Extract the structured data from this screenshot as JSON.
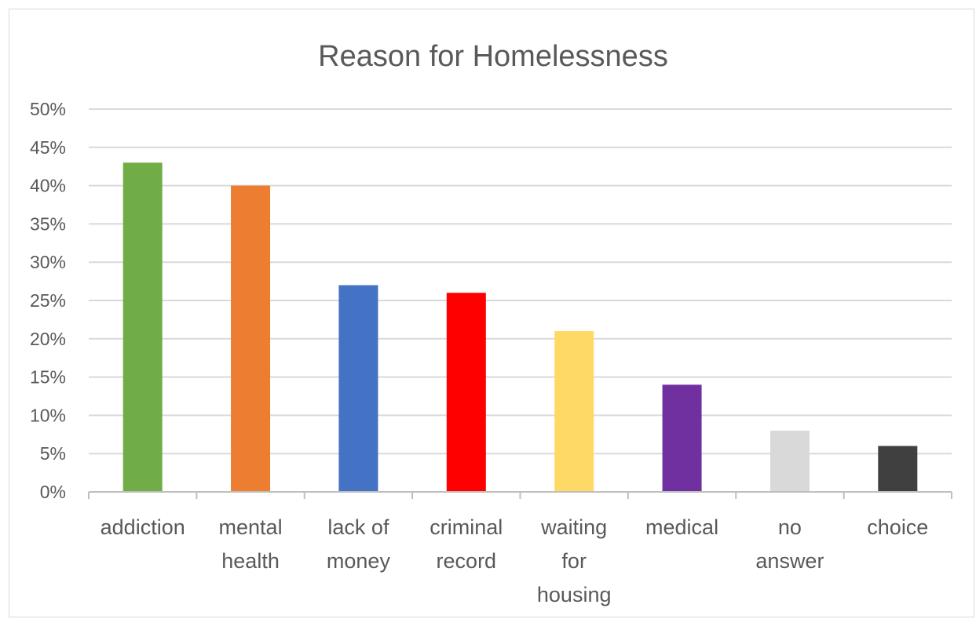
{
  "chart_data": {
    "type": "bar",
    "title": "Reason for Homelessness",
    "xlabel": "",
    "ylabel": "",
    "ylim": [
      0,
      50
    ],
    "y_ticks": [
      "0%",
      "5%",
      "10%",
      "15%",
      "20%",
      "25%",
      "30%",
      "35%",
      "40%",
      "45%",
      "50%"
    ],
    "grid": true,
    "legend": "none",
    "categories": [
      [
        "addiction"
      ],
      [
        "mental",
        "health"
      ],
      [
        "lack of",
        "money"
      ],
      [
        "criminal",
        "record"
      ],
      [
        "waiting",
        "for",
        "housing"
      ],
      [
        "medical"
      ],
      [
        "no",
        "answer"
      ],
      [
        "choice"
      ]
    ],
    "values": [
      43,
      40,
      27,
      26,
      21,
      14,
      8,
      6
    ],
    "colors": [
      "#70ad47",
      "#ed7d31",
      "#4472c4",
      "#ff0000",
      "#ffd966",
      "#7030a0",
      "#d9d9d9",
      "#404040"
    ]
  }
}
